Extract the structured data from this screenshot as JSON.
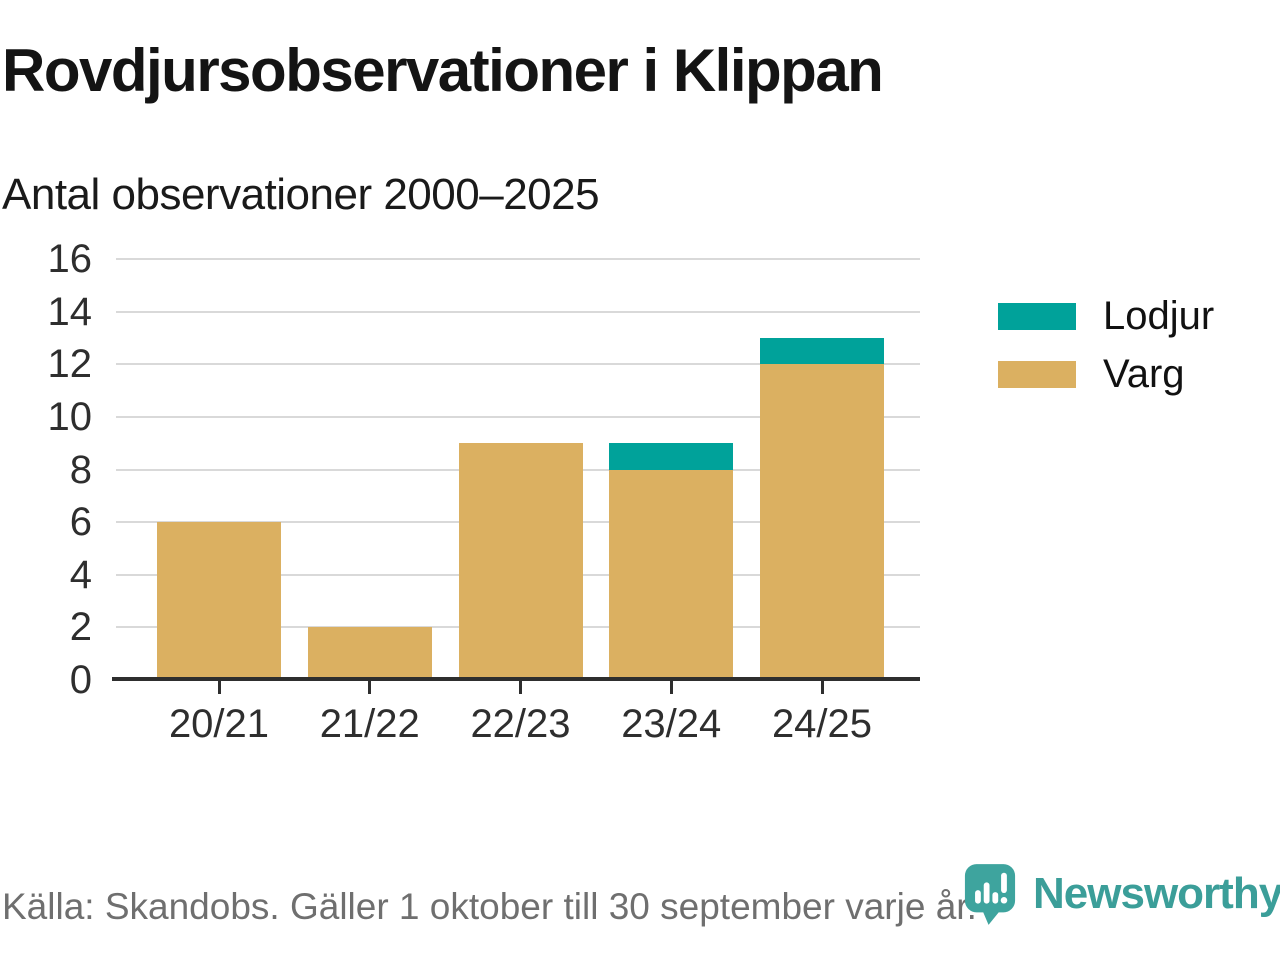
{
  "header": {
    "title": "Rovdjursobservationer i Klippan",
    "subtitle": "Antal observationer 2000–2025"
  },
  "chart_data": {
    "type": "bar",
    "stacked": true,
    "title": "Rovdjursobservationer i Klippan",
    "subtitle": "Antal observationer 2000–2025",
    "categories": [
      "20/21",
      "21/22",
      "22/23",
      "23/24",
      "24/25"
    ],
    "series": [
      {
        "name": "Varg",
        "color": "#dbb061",
        "values": [
          6,
          2,
          9,
          8,
          12
        ]
      },
      {
        "name": "Lodjur",
        "color": "#00a29a",
        "values": [
          0,
          0,
          0,
          1,
          1
        ]
      }
    ],
    "totals": [
      6,
      2,
      9,
      9,
      13
    ],
    "xlabel": "",
    "ylabel": "",
    "ylim": [
      0,
      16
    ],
    "yticks": [
      0,
      2,
      4,
      6,
      8,
      10,
      12,
      14,
      16
    ],
    "grid": true,
    "legend_position": "right"
  },
  "legend": {
    "items": [
      {
        "label": "Lodjur",
        "color": "#00a29a"
      },
      {
        "label": "Varg",
        "color": "#dbb061"
      }
    ]
  },
  "footer": {
    "source": "Källa: Skandobs. Gäller 1 oktober till 30 september varje år."
  },
  "logo": {
    "text": "Newsworthy",
    "icon": "newsworthy-speech-bubble-chart-icon",
    "icon_color": "#3ea49e",
    "text_color": "#3b9e99"
  },
  "colors": {
    "gridline": "#d9d9d9",
    "axis": "#2e2e2e",
    "title_text": "#141414",
    "footer_text": "#6f6f6f"
  }
}
